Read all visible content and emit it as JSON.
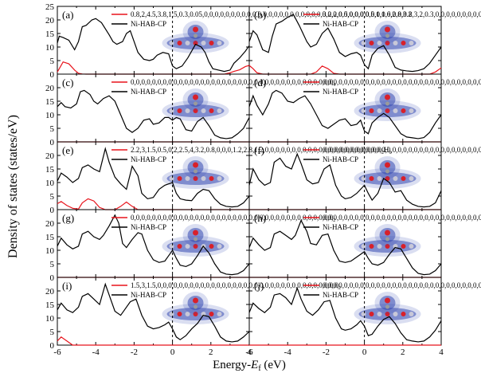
{
  "figure": {
    "ylabel": "Density of states (states/eV)",
    "xlabel_main": "Energy-",
    "xlabel_symbol": "E",
    "xlabel_sub": "f",
    "xlabel_unit": " (eV)"
  },
  "colors": {
    "ni": "#000000",
    "gas": "#e8141c",
    "fermi": "#000000",
    "cloud": "#3448b0"
  },
  "chart_data": [
    {
      "label": "(a)",
      "gas": [
        0.8,
        2,
        4.5,
        3.8,
        1.5,
        0.3,
        0.05,
        0,
        0,
        0,
        0,
        0,
        0,
        0,
        0,
        0,
        0,
        0,
        0,
        0,
        0,
        0,
        0,
        0,
        0,
        0,
        0,
        0,
        0,
        0,
        0,
        0,
        0,
        0,
        0,
        0,
        0,
        0.5,
        1,
        1.6,
        2.8,
        3.2
      ],
      "ref": "Ni-HAB-CP",
      "type": "line",
      "xlim": [
        -6,
        4
      ],
      "ylim": [
        0,
        25
      ],
      "x": [
        -6,
        -5.9,
        -5.7,
        -5.4,
        -5.1,
        -4.9,
        -4.7,
        -4.5,
        -4.2,
        -4.0,
        -3.7,
        -3.3,
        -3.1,
        -2.9,
        -2.6,
        -2.4,
        -2.2,
        -2.0,
        -1.8,
        -1.5,
        -1.2,
        -1.0,
        -0.8,
        -0.5,
        -0.2,
        0,
        0.2,
        0.5,
        0.8,
        1.0,
        1.2,
        1.5,
        1.7,
        1.9,
        2.1,
        2.4,
        2.7,
        3.0,
        3.2,
        3.5,
        3.8,
        4.0
      ],
      "ni": [
        11.5,
        14,
        13.5,
        12.5,
        9,
        12,
        17.5,
        18,
        20,
        20.5,
        19,
        14.5,
        12,
        11,
        12,
        15,
        16,
        12,
        8,
        5.5,
        5,
        5.5,
        7,
        8,
        7.5,
        3,
        2,
        3,
        6,
        8.5,
        11,
        10,
        8,
        4.5,
        2,
        1.5,
        1,
        1.5,
        4,
        6,
        8.5,
        10.5
      ]
    },
    {
      "label": "(b)",
      "gas": [
        3.2,
        2,
        0.5,
        0,
        0,
        0,
        0,
        0,
        0,
        0,
        0,
        0,
        0,
        0.8,
        3,
        2,
        0.3,
        0,
        0,
        0,
        0,
        0,
        0,
        0,
        0,
        0,
        0,
        0,
        0,
        0,
        0,
        0,
        0,
        0,
        0,
        0.8,
        2.3
      ],
      "gas_sub": "2",
      "ref": "Ni-HAB-CP",
      "type": "line",
      "xlim": [
        -6,
        4
      ],
      "ylim": [
        0,
        25
      ],
      "x": [
        -6,
        -5.8,
        -5.6,
        -5.3,
        -5.0,
        -4.8,
        -4.6,
        -4.3,
        -4.0,
        -3.7,
        -3.4,
        -3.0,
        -2.8,
        -2.5,
        -2.2,
        -1.9,
        -1.6,
        -1.3,
        -1.0,
        -0.7,
        -0.4,
        -0.2,
        0,
        0.2,
        0.4,
        0.7,
        1.0,
        1.3,
        1.6,
        1.9,
        2.2,
        2.5,
        2.8,
        3.1,
        3.4,
        3.7,
        4.0
      ],
      "ni": [
        12,
        16,
        14.5,
        9,
        8,
        14,
        18.5,
        19.5,
        21,
        22,
        18,
        12,
        10,
        11,
        15,
        17,
        13,
        8,
        6.5,
        7.5,
        8,
        7,
        3.5,
        2,
        7,
        9.5,
        10.5,
        7,
        2.5,
        1.5,
        1.2,
        1,
        1.3,
        2,
        4,
        7,
        10
      ]
    },
    {
      "label": "(c)",
      "gas": [
        0,
        0,
        0,
        0,
        0,
        0,
        0,
        0,
        0,
        0,
        0,
        0,
        0,
        0,
        0,
        0,
        0,
        0,
        0,
        0,
        0,
        0,
        0,
        0,
        0,
        0,
        0,
        0,
        0,
        0,
        0,
        0,
        0,
        0,
        0,
        0,
        0,
        0
      ],
      "gas_sub": "4",
      "ref": "Ni-HAB-CP",
      "type": "line",
      "xlim": [
        -6,
        4
      ],
      "ylim": [
        0,
        25
      ],
      "x": [
        -6,
        -5.8,
        -5.6,
        -5.3,
        -5.0,
        -4.8,
        -4.6,
        -4.3,
        -4.1,
        -3.9,
        -3.6,
        -3.3,
        -3.0,
        -2.7,
        -2.4,
        -2.1,
        -1.8,
        -1.5,
        -1.2,
        -1.0,
        -0.7,
        -0.4,
        -0.2,
        0,
        0.2,
        0.4,
        0.7,
        1.0,
        1.3,
        1.6,
        1.9,
        2.2,
        2.5,
        2.8,
        3.1,
        3.4,
        3.7,
        4.0
      ],
      "ni": [
        13,
        14.5,
        13,
        12.5,
        14,
        18.5,
        19,
        17.5,
        15,
        14,
        16,
        17,
        15,
        10,
        5,
        3.5,
        5,
        8,
        8.5,
        6.5,
        7,
        9,
        9,
        8,
        9,
        8.5,
        4.5,
        4,
        7.5,
        9,
        6,
        2.5,
        1.5,
        1.2,
        1.5,
        3,
        5,
        9
      ]
    },
    {
      "label": "(d)",
      "gas": [
        0,
        0,
        0,
        0,
        0,
        0,
        0,
        0,
        0,
        0,
        0,
        0,
        0,
        0,
        0,
        0,
        0,
        0,
        0,
        0,
        0,
        0,
        0,
        0,
        0,
        0,
        0,
        0,
        0,
        0,
        0,
        0,
        0,
        0,
        0,
        0,
        0
      ],
      "gas_sub": "3",
      "ref": "Ni-HAB-CP",
      "type": "line",
      "xlim": [
        -6,
        4
      ],
      "ylim": [
        0,
        25
      ],
      "x": [
        -6,
        -5.8,
        -5.6,
        -5.3,
        -5.0,
        -4.8,
        -4.6,
        -4.3,
        -4.0,
        -3.7,
        -3.4,
        -3.1,
        -2.8,
        -2.5,
        -2.2,
        -1.9,
        -1.6,
        -1.3,
        -1.0,
        -0.7,
        -0.4,
        -0.2,
        0,
        0.2,
        0.4,
        0.7,
        1.0,
        1.3,
        1.6,
        1.9,
        2.2,
        2.5,
        2.8,
        3.1,
        3.4,
        3.7,
        4.0
      ],
      "ni": [
        13,
        17,
        13.5,
        10,
        14,
        18,
        19,
        18,
        15,
        14.5,
        16,
        17,
        14,
        10,
        6,
        5,
        6.5,
        8,
        8.5,
        6,
        6.5,
        8,
        4,
        3,
        7,
        9,
        10.5,
        9,
        6,
        3,
        1.8,
        1.5,
        1.2,
        1.6,
        3.5,
        7,
        10
      ]
    },
    {
      "label": "(e)",
      "gas": [
        2.2,
        3,
        1.5,
        0.5,
        0.2,
        2.5,
        4,
        3.2,
        0.8,
        0,
        0,
        0,
        1.2,
        2.8,
        1.2,
        0,
        0,
        0,
        0,
        0,
        0,
        0,
        0,
        0,
        0,
        0,
        0,
        0,
        0,
        0,
        0,
        0,
        0,
        0,
        0,
        0,
        0
      ],
      "gas_sub": "2",
      "gas2": "H",
      "gas_sub2": "6",
      "ref": "Ni-HAB-CP",
      "type": "line",
      "xlim": [
        -6,
        4
      ],
      "ylim": [
        0,
        25
      ],
      "x": [
        -6,
        -5.8,
        -5.5,
        -5.2,
        -4.9,
        -4.7,
        -4.4,
        -4.1,
        -3.8,
        -3.5,
        -3.3,
        -3.0,
        -2.7,
        -2.4,
        -2.1,
        -1.8,
        -1.6,
        -1.3,
        -1.0,
        -0.7,
        -0.4,
        -0.2,
        0,
        0.2,
        0.4,
        0.7,
        1.0,
        1.3,
        1.6,
        1.9,
        2.2,
        2.5,
        2.8,
        3.1,
        3.4,
        3.7,
        4.0
      ],
      "ni": [
        10.5,
        13.5,
        12,
        10,
        11.5,
        15.5,
        16.5,
        15,
        14,
        22.5,
        17.5,
        12,
        9.5,
        7.5,
        16,
        12.5,
        6,
        4,
        4.5,
        7.5,
        9,
        9.5,
        10,
        6,
        4,
        3.5,
        3.3,
        6,
        7.5,
        7,
        4,
        2,
        1.2,
        1,
        1.2,
        2.5,
        5
      ]
    },
    {
      "label": "(f)",
      "gas": [
        0,
        0,
        0,
        0,
        0,
        0,
        0,
        0,
        0,
        0,
        0,
        0,
        0,
        0,
        0,
        0,
        0,
        0,
        0,
        0,
        0,
        0,
        0,
        0,
        0,
        0,
        0,
        0,
        0,
        0,
        0,
        0,
        0,
        0,
        0,
        0,
        0
      ],
      "ref": "Ni-HAB-CP",
      "type": "line",
      "xlim": [
        -6,
        4
      ],
      "ylim": [
        0,
        25
      ],
      "x": [
        -6,
        -5.8,
        -5.5,
        -5.2,
        -4.9,
        -4.7,
        -4.4,
        -4.1,
        -3.8,
        -3.5,
        -3.3,
        -3.0,
        -2.7,
        -2.4,
        -2.1,
        -1.8,
        -1.5,
        -1.2,
        -1.0,
        -0.7,
        -0.4,
        -0.2,
        0,
        0.2,
        0.4,
        0.7,
        1.0,
        1.3,
        1.6,
        1.9,
        2.2,
        2.5,
        2.8,
        3.1,
        3.4,
        3.7,
        4.0
      ],
      "ni": [
        9,
        15,
        11,
        9,
        10,
        17.5,
        19,
        16,
        15,
        20.5,
        17,
        11,
        9.5,
        10,
        15,
        16.5,
        9,
        5,
        4,
        4.5,
        6,
        7.5,
        9,
        6,
        3.5,
        6,
        11.5,
        10,
        6.5,
        7,
        3.5,
        2,
        1.2,
        1,
        1.2,
        2.5,
        7
      ]
    },
    {
      "label": "(g)",
      "gas": [
        0,
        0,
        0,
        0,
        0,
        0,
        0,
        0,
        0,
        0,
        0,
        0,
        0,
        0,
        0,
        0,
        0,
        0,
        0,
        0,
        0,
        0,
        0,
        0,
        0,
        0,
        0,
        0,
        0,
        0,
        0,
        0,
        0,
        0,
        0,
        0,
        0,
        0
      ],
      "gas_sub": "2",
      "ref": "Ni-HAB-CP",
      "type": "line",
      "xlim": [
        -6,
        4
      ],
      "ylim": [
        0,
        25
      ],
      "x": [
        -6,
        -5.8,
        -5.5,
        -5.2,
        -4.9,
        -4.7,
        -4.4,
        -4.1,
        -3.8,
        -3.6,
        -3.3,
        -3.0,
        -2.8,
        -2.6,
        -2.4,
        -2.1,
        -1.8,
        -1.6,
        -1.3,
        -1.0,
        -0.7,
        -0.4,
        -0.2,
        0,
        0.2,
        0.4,
        0.7,
        1.0,
        1.3,
        1.6,
        1.9,
        2.2,
        2.5,
        2.8,
        3.1,
        3.4,
        3.7,
        4.0
      ],
      "ni": [
        11.5,
        14.5,
        12,
        10.5,
        11.5,
        16,
        17,
        15,
        14,
        15.5,
        19,
        23,
        20,
        12.5,
        11,
        14,
        16.5,
        16,
        10,
        6.5,
        5.5,
        6,
        8,
        10,
        7,
        4.5,
        4,
        5,
        8,
        11.5,
        9,
        5,
        2,
        1.2,
        1,
        1.3,
        2.5,
        5
      ]
    },
    {
      "label": "(h)",
      "gas": [
        0,
        0,
        0,
        0,
        0,
        0,
        0,
        0,
        0,
        0,
        0,
        0,
        0,
        0,
        0,
        0,
        0,
        0,
        0,
        0,
        0,
        0,
        0,
        0,
        0,
        0,
        0,
        0,
        0,
        0,
        0,
        0,
        0,
        0,
        0,
        0,
        0
      ],
      "gas_sub": "2",
      "gas2": "O",
      "ref": "Ni-HAB-CP",
      "type": "line",
      "xlim": [
        -6,
        4
      ],
      "ylim": [
        0,
        25
      ],
      "x": [
        -6,
        -5.8,
        -5.5,
        -5.2,
        -4.9,
        -4.7,
        -4.4,
        -4.1,
        -3.8,
        -3.6,
        -3.3,
        -3.0,
        -2.8,
        -2.5,
        -2.2,
        -1.9,
        -1.6,
        -1.3,
        -1.0,
        -0.7,
        -0.4,
        -0.2,
        0,
        0.2,
        0.4,
        0.7,
        1.0,
        1.3,
        1.6,
        1.9,
        2.2,
        2.5,
        2.8,
        3.1,
        3.4,
        3.7,
        4.0
      ],
      "ni": [
        11,
        14.5,
        12,
        10,
        11,
        16,
        17,
        15.5,
        14,
        15.5,
        21,
        17,
        12.5,
        12,
        15.5,
        16,
        10,
        6,
        5.5,
        6,
        7.5,
        8.5,
        9.5,
        7,
        5,
        4.5,
        5.5,
        8.5,
        11,
        10.5,
        7,
        3.5,
        1.5,
        1,
        1.2,
        2.5,
        5
      ]
    },
    {
      "label": "(i)",
      "gas": [
        1.5,
        3,
        1.5,
        0,
        0,
        0,
        0,
        0,
        0,
        0,
        0,
        0,
        0,
        0,
        0,
        0,
        0,
        0,
        0,
        0,
        0,
        0,
        0,
        0,
        0,
        0,
        0,
        0,
        0,
        0,
        0,
        0,
        0,
        0,
        0,
        0,
        0
      ],
      "gas_sub": "2",
      "ref": "Ni-HAB-CP",
      "type": "line",
      "xlim": [
        -6,
        4
      ],
      "ylim": [
        0,
        25
      ],
      "x": [
        -6,
        -5.8,
        -5.5,
        -5.2,
        -4.9,
        -4.7,
        -4.4,
        -4.1,
        -3.8,
        -3.5,
        -3.3,
        -3.0,
        -2.7,
        -2.5,
        -2.2,
        -1.9,
        -1.6,
        -1.3,
        -1.0,
        -0.7,
        -0.4,
        -0.2,
        0,
        0.2,
        0.4,
        0.7,
        1.0,
        1.3,
        1.6,
        1.9,
        2.2,
        2.5,
        2.8,
        3.1,
        3.4,
        3.7,
        4.0
      ],
      "ni": [
        13,
        15.5,
        13,
        12,
        14,
        18,
        19,
        17,
        15,
        22.5,
        18.5,
        12.5,
        11,
        13,
        16,
        17,
        11,
        7,
        6,
        6.5,
        7.5,
        8.5,
        6,
        3,
        2,
        3.5,
        6,
        8,
        11,
        10.5,
        7,
        3,
        1.5,
        1.2,
        1.5,
        3,
        5
      ]
    },
    {
      "label": "(j)",
      "gas": [
        0,
        0,
        0,
        0,
        0,
        0,
        0,
        0,
        0,
        0,
        0,
        0,
        0,
        0,
        0,
        0,
        0,
        0,
        0,
        0,
        0,
        0,
        0,
        0,
        0,
        0,
        0,
        0,
        0,
        0,
        0,
        0,
        0,
        0,
        0,
        0,
        0
      ],
      "gas_sub": "2",
      "ref": "Ni-HAB-CP",
      "type": "line",
      "xlim": [
        -6,
        4
      ],
      "ylim": [
        0,
        25
      ],
      "x": [
        -6,
        -5.8,
        -5.5,
        -5.2,
        -4.9,
        -4.7,
        -4.4,
        -4.1,
        -3.8,
        -3.5,
        -3.3,
        -3.0,
        -2.7,
        -2.4,
        -2.1,
        -1.8,
        -1.5,
        -1.2,
        -1.0,
        -0.7,
        -0.4,
        -0.2,
        0,
        0.2,
        0.4,
        0.7,
        1.0,
        1.3,
        1.6,
        1.9,
        2.2,
        2.5,
        2.8,
        3.1,
        3.4,
        3.7,
        4.0
      ],
      "ni": [
        12,
        15.5,
        13.5,
        12,
        14,
        18.5,
        19,
        17.5,
        15,
        21,
        17,
        12.5,
        11,
        13,
        16,
        16.5,
        10,
        6,
        5.5,
        6,
        7.5,
        9,
        7,
        3.5,
        4,
        7,
        9.5,
        10.5,
        8,
        4.5,
        2,
        1.5,
        1.2,
        1.5,
        3,
        5.5,
        9
      ]
    }
  ]
}
